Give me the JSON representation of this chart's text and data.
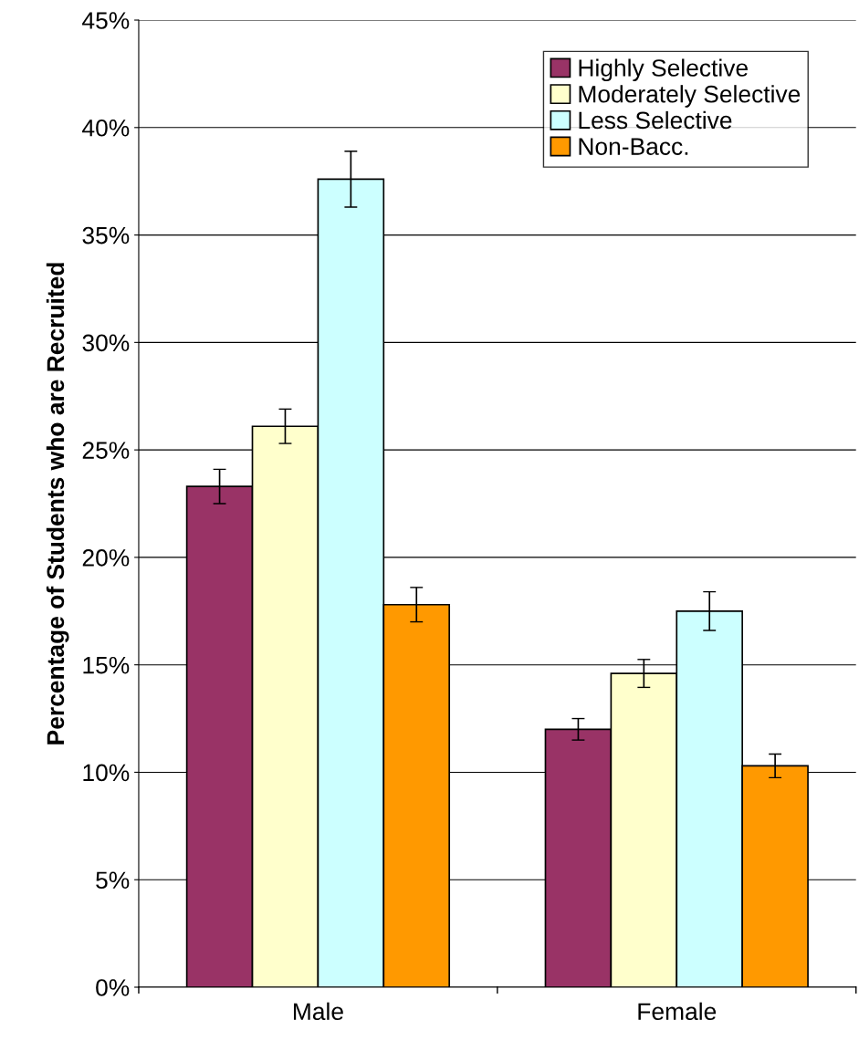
{
  "chart_data": {
    "type": "bar",
    "ylabel": "Percentage of Students who are Recruited",
    "categories": [
      "Male",
      "Female"
    ],
    "series": [
      {
        "name": "Highly Selective",
        "color": "#993366",
        "values": [
          23.3,
          12.0
        ],
        "errors": [
          0.8,
          0.5
        ]
      },
      {
        "name": "Moderately Selective",
        "color": "#ffffcc",
        "values": [
          26.1,
          14.6
        ],
        "errors": [
          0.8,
          0.65
        ]
      },
      {
        "name": "Less Selective",
        "color": "#ccffff",
        "values": [
          37.6,
          17.5
        ],
        "errors": [
          1.3,
          0.9
        ]
      },
      {
        "name": "Non-Bacc.",
        "color": "#ff9900",
        "values": [
          17.8,
          10.3
        ],
        "errors": [
          0.8,
          0.55
        ]
      }
    ],
    "ylim": [
      0,
      45
    ],
    "yticks": [
      {
        "value": 0,
        "label": "0%"
      },
      {
        "value": 5,
        "label": "5%"
      },
      {
        "value": 10,
        "label": "10%"
      },
      {
        "value": 15,
        "label": "15%"
      },
      {
        "value": 20,
        "label": "20%"
      },
      {
        "value": 25,
        "label": "25%"
      },
      {
        "value": 30,
        "label": "30%"
      },
      {
        "value": 35,
        "label": "35%"
      },
      {
        "value": 40,
        "label": "40%"
      },
      {
        "value": 45,
        "label": "45%"
      }
    ],
    "grid": "y",
    "legend": "top right"
  }
}
